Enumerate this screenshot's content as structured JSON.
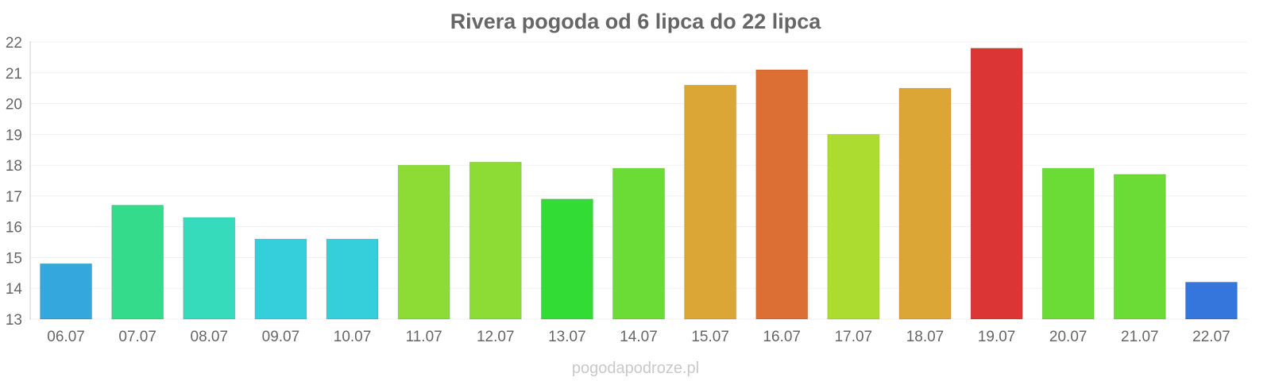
{
  "chart_data": {
    "type": "bar",
    "title": "Rivera pogoda od 6 lipca do 22 lipca",
    "xlabel": "",
    "ylabel": "",
    "ylim": [
      13,
      22
    ],
    "yticks": [
      13,
      14,
      15,
      16,
      17,
      18,
      19,
      20,
      21,
      22
    ],
    "grid": true,
    "categories": [
      "06.07",
      "07.07",
      "08.07",
      "09.07",
      "10.07",
      "11.07",
      "12.07",
      "13.07",
      "14.07",
      "15.07",
      "16.07",
      "17.07",
      "18.07",
      "19.07",
      "20.07",
      "21.07",
      "22.07"
    ],
    "values": [
      14.8,
      16.7,
      16.3,
      15.6,
      15.6,
      18.0,
      18.1,
      16.9,
      17.9,
      20.6,
      21.1,
      19.0,
      20.5,
      21.8,
      17.9,
      17.7,
      14.2
    ],
    "colors": [
      "#34a7dc",
      "#33db8a",
      "#35dbba",
      "#35cedb",
      "#35cedb",
      "#8ddc36",
      "#8ddc36",
      "#33db35",
      "#6bdb35",
      "#dca636",
      "#dc6f34",
      "#acdc30",
      "#dca636",
      "#dc3535",
      "#6bdb35",
      "#6bdb35",
      "#3576dc"
    ]
  },
  "watermark": "pogodapodroze.pl"
}
